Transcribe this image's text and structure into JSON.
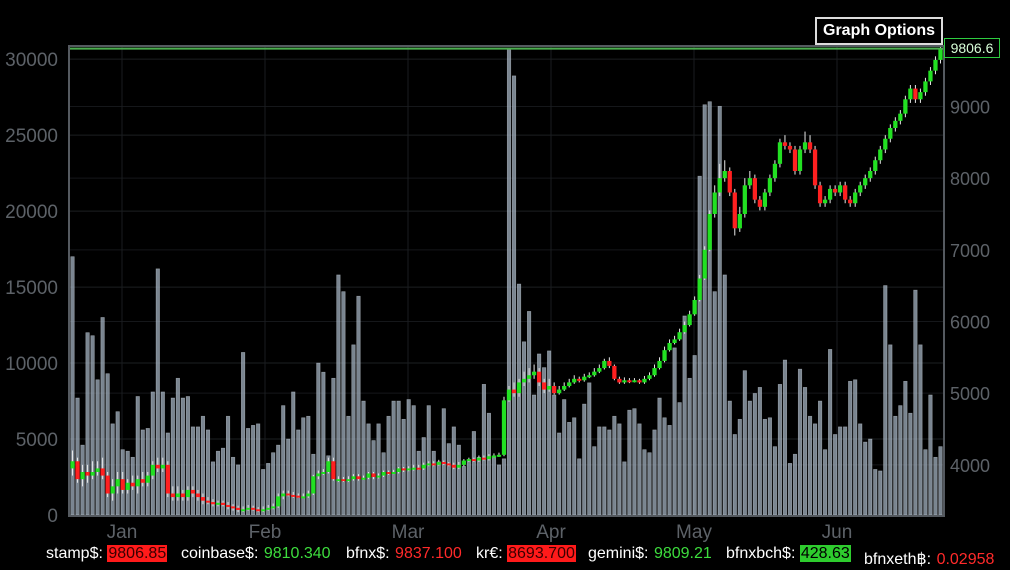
{
  "graph_options_label": "Graph Options",
  "last_price": "9806.6",
  "ticker": [
    {
      "label": "stamp$:",
      "value": "9806.85",
      "style": "down-bg"
    },
    {
      "label": "coinbase$:",
      "value": "9810.340",
      "style": "up"
    },
    {
      "label": "bfnx$:",
      "value": "9837.100",
      "style": "down"
    },
    {
      "label": "kr€:",
      "value": "8693.700",
      "style": "down-bg"
    },
    {
      "label": "gemini$:",
      "value": "9809.21",
      "style": "up"
    },
    {
      "label": "bfnxbch$:",
      "value": "428.63",
      "style": "up-bg"
    },
    {
      "label": "bfnxeth฿:",
      "value": "0.02958",
      "style": "down"
    }
  ],
  "colors": {
    "up": "#22e022",
    "down": "#ff2020",
    "volume": "#a9b8c8",
    "background": "#000000"
  },
  "chart_data": {
    "type": "candlestick",
    "title": "",
    "x_tick_labels": [
      "Jan",
      "Feb",
      "Mar",
      "Apr",
      "May",
      "Jun"
    ],
    "volume_axis": {
      "ticks": [
        0,
        5000,
        10000,
        15000,
        20000,
        25000,
        30000
      ],
      "range": [
        0,
        30800
      ]
    },
    "price_axis": {
      "ticks": [
        4000,
        5000,
        6000,
        7000,
        8000,
        9000
      ],
      "range": [
        3300,
        9830
      ]
    },
    "grid": true,
    "volume": [
      17000,
      7700,
      4600,
      12000,
      11800,
      8900,
      13000,
      9300,
      6000,
      6800,
      4300,
      4200,
      3800,
      7800,
      5600,
      5700,
      8100,
      16200,
      8100,
      5400,
      7700,
      9000,
      7700,
      7800,
      5800,
      5800,
      6500,
      5600,
      3500,
      4200,
      4400,
      6500,
      3800,
      3300,
      10700,
      5700,
      5900,
      6000,
      3000,
      3400,
      4100,
      4600,
      7200,
      5000,
      8100,
      5600,
      6400,
      6500,
      4000,
      10000,
      9400,
      3900,
      9000,
      15800,
      14700,
      6500,
      11200,
      14400,
      7500,
      6000,
      4900,
      6000,
      4100,
      6500,
      7500,
      7500,
      6300,
      7600,
      7200,
      4200,
      5100,
      7200,
      4200,
      3500,
      7000,
      4700,
      5800,
      4600,
      3200,
      3600,
      5500,
      3800,
      8600,
      6700,
      3800,
      3300,
      3700,
      30700,
      28900,
      15200,
      11400,
      13400,
      7900,
      10600,
      9700,
      10800,
      7900,
      5400,
      7600,
      6100,
      6400,
      3700,
      7300,
      8700,
      4500,
      5800,
      5800,
      5600,
      6500,
      6000,
      3500,
      6900,
      7000,
      6000,
      4300,
      4100,
      5600,
      7700,
      6400,
      5900,
      11000,
      7400,
      13100,
      9000,
      10500,
      22300,
      27000,
      27200,
      14700,
      26900,
      15800,
      7500,
      5300,
      6300,
      9500,
      7500,
      8000,
      8400,
      6300,
      6400,
      4500,
      8600,
      10200,
      3400,
      4000,
      9600,
      8400,
      6500,
      6000,
      7500,
      4300,
      10900,
      5300,
      5800,
      5800,
      8800,
      8900,
      6000,
      4800,
      5000,
      3000,
      2900,
      15100,
      11200,
      6500,
      7200,
      8800,
      6700,
      14800,
      11200,
      4300,
      7900,
      3800,
      4500
    ],
    "candles": [
      [
        3950,
        4050,
        3850,
        4200,
        3750
      ],
      [
        4050,
        3800,
        3750,
        4100,
        3700
      ],
      [
        3800,
        3900,
        3700,
        4000,
        3650
      ],
      [
        3900,
        3850,
        3750,
        4000,
        3700
      ],
      [
        3850,
        3900,
        3800,
        4050,
        3750
      ],
      [
        3900,
        3950,
        3850,
        4050,
        3800
      ],
      [
        3950,
        3850,
        3800,
        4100,
        3750
      ],
      [
        3850,
        3600,
        3550,
        3900,
        3500
      ],
      [
        3600,
        3700,
        3500,
        3800,
        3450
      ],
      [
        3700,
        3800,
        3600,
        3900,
        3550
      ],
      [
        3800,
        3650,
        3600,
        3900,
        3550
      ],
      [
        3650,
        3750,
        3600,
        3800,
        3550
      ],
      [
        3750,
        3700,
        3650,
        3850,
        3600
      ],
      [
        3700,
        3800,
        3600,
        3850,
        3550
      ],
      [
        3800,
        3750,
        3700,
        3900,
        3650
      ],
      [
        3750,
        3850,
        3700,
        3900,
        3650
      ],
      [
        3850,
        4000,
        3800,
        4050,
        3750
      ],
      [
        4000,
        3950,
        3900,
        4100,
        3850
      ],
      [
        3950,
        4000,
        3900,
        4100,
        3850
      ],
      [
        4000,
        3600,
        3550,
        4050,
        3500
      ],
      [
        3600,
        3550,
        3500,
        3700,
        3450
      ],
      [
        3550,
        3600,
        3500,
        3700,
        3450
      ],
      [
        3600,
        3550,
        3500,
        3650,
        3450
      ],
      [
        3550,
        3650,
        3500,
        3700,
        3450
      ],
      [
        3650,
        3600,
        3550,
        3700,
        3500
      ],
      [
        3600,
        3550,
        3500,
        3650,
        3450
      ],
      [
        3550,
        3500,
        3450,
        3600,
        3400
      ],
      [
        3500,
        3480,
        3450,
        3550,
        3420
      ],
      [
        3480,
        3450,
        3420,
        3520,
        3400
      ],
      [
        3450,
        3470,
        3420,
        3500,
        3400
      ],
      [
        3470,
        3440,
        3420,
        3500,
        3400
      ],
      [
        3440,
        3420,
        3380,
        3480,
        3350
      ],
      [
        3420,
        3400,
        3360,
        3450,
        3330
      ],
      [
        3400,
        3370,
        3340,
        3430,
        3320
      ],
      [
        3370,
        3380,
        3340,
        3420,
        3320
      ],
      [
        3380,
        3400,
        3360,
        3440,
        3340
      ],
      [
        3400,
        3380,
        3360,
        3430,
        3340
      ],
      [
        3380,
        3360,
        3340,
        3410,
        3320
      ],
      [
        3360,
        3380,
        3340,
        3420,
        3320
      ],
      [
        3380,
        3400,
        3360,
        3440,
        3340
      ],
      [
        3400,
        3420,
        3380,
        3460,
        3360
      ],
      [
        3420,
        3560,
        3400,
        3600,
        3380
      ],
      [
        3560,
        3600,
        3520,
        3640,
        3500
      ],
      [
        3600,
        3580,
        3560,
        3640,
        3540
      ],
      [
        3580,
        3570,
        3540,
        3620,
        3520
      ],
      [
        3570,
        3560,
        3540,
        3600,
        3520
      ],
      [
        3560,
        3560,
        3540,
        3600,
        3520
      ],
      [
        3560,
        3600,
        3540,
        3640,
        3520
      ],
      [
        3600,
        3840,
        3580,
        3860,
        3560
      ],
      [
        3840,
        3880,
        3800,
        3920,
        3780
      ],
      [
        3880,
        3900,
        3860,
        3940,
        3840
      ],
      [
        3900,
        4050,
        3880,
        4100,
        3860
      ],
      [
        4050,
        3800,
        3780,
        4100,
        3760
      ],
      [
        3800,
        3800,
        3760,
        3840,
        3740
      ],
      [
        3800,
        3780,
        3760,
        3830,
        3740
      ],
      [
        3780,
        3800,
        3760,
        3840,
        3740
      ],
      [
        3800,
        3840,
        3780,
        3870,
        3760
      ],
      [
        3840,
        3800,
        3780,
        3870,
        3760
      ],
      [
        3800,
        3820,
        3790,
        3850,
        3770
      ],
      [
        3820,
        3880,
        3800,
        3900,
        3780
      ],
      [
        3880,
        3830,
        3800,
        3900,
        3780
      ],
      [
        3830,
        3850,
        3810,
        3880,
        3790
      ],
      [
        3850,
        3900,
        3830,
        3920,
        3810
      ],
      [
        3900,
        3880,
        3860,
        3920,
        3840
      ],
      [
        3880,
        3900,
        3870,
        3930,
        3850
      ],
      [
        3900,
        3950,
        3880,
        3970,
        3860
      ],
      [
        3950,
        3930,
        3900,
        3970,
        3880
      ],
      [
        3930,
        3950,
        3910,
        3980,
        3890
      ],
      [
        3950,
        3960,
        3920,
        4000,
        3900
      ],
      [
        3960,
        3950,
        3930,
        4000,
        3910
      ],
      [
        3950,
        4000,
        3930,
        4030,
        3910
      ],
      [
        4000,
        4020,
        3980,
        4050,
        3960
      ],
      [
        4020,
        4000,
        3980,
        4050,
        3960
      ],
      [
        4000,
        4040,
        3990,
        4070,
        3970
      ],
      [
        4040,
        4020,
        4000,
        4060,
        3980
      ],
      [
        4020,
        4000,
        3980,
        4040,
        3960
      ],
      [
        4000,
        3960,
        3940,
        4030,
        3920
      ],
      [
        3960,
        4000,
        3940,
        4040,
        3920
      ],
      [
        4000,
        4060,
        3980,
        4080,
        3960
      ],
      [
        4060,
        4080,
        4040,
        4100,
        4020
      ],
      [
        4080,
        4060,
        4040,
        4100,
        4020
      ],
      [
        4060,
        4100,
        4040,
        4130,
        4020
      ],
      [
        4100,
        4080,
        4060,
        4130,
        4040
      ],
      [
        4080,
        4120,
        4060,
        4150,
        4040
      ],
      [
        4120,
        4130,
        4100,
        4160,
        4080
      ],
      [
        4130,
        4140,
        4110,
        4170,
        4090
      ],
      [
        4140,
        4900,
        4120,
        4950,
        4100
      ],
      [
        4900,
        5050,
        4880,
        5100,
        4850
      ],
      [
        5050,
        5000,
        4950,
        5150,
        4900
      ],
      [
        5000,
        5150,
        4950,
        5200,
        4900
      ],
      [
        5150,
        5200,
        5100,
        5300,
        5050
      ],
      [
        5200,
        5250,
        5150,
        5350,
        5100
      ],
      [
        5250,
        5300,
        5200,
        5400,
        5150
      ],
      [
        5300,
        5150,
        5100,
        5350,
        5050
      ],
      [
        5150,
        5050,
        5000,
        5200,
        4980
      ],
      [
        5050,
        5100,
        5020,
        5200,
        5000
      ],
      [
        5100,
        5000,
        4980,
        5150,
        4960
      ],
      [
        5000,
        5050,
        4980,
        5100,
        4960
      ],
      [
        5050,
        5100,
        5030,
        5150,
        5010
      ],
      [
        5100,
        5150,
        5080,
        5200,
        5060
      ],
      [
        5150,
        5200,
        5130,
        5250,
        5110
      ],
      [
        5200,
        5180,
        5150,
        5230,
        5130
      ],
      [
        5180,
        5230,
        5160,
        5270,
        5140
      ],
      [
        5230,
        5250,
        5210,
        5290,
        5190
      ],
      [
        5250,
        5300,
        5230,
        5350,
        5210
      ],
      [
        5300,
        5350,
        5280,
        5400,
        5260
      ],
      [
        5350,
        5450,
        5330,
        5480,
        5310
      ],
      [
        5450,
        5380,
        5350,
        5500,
        5330
      ],
      [
        5380,
        5200,
        5180,
        5400,
        5160
      ],
      [
        5200,
        5150,
        5130,
        5230,
        5110
      ],
      [
        5150,
        5180,
        5130,
        5220,
        5110
      ],
      [
        5180,
        5160,
        5140,
        5210,
        5120
      ],
      [
        5160,
        5180,
        5150,
        5210,
        5130
      ],
      [
        5180,
        5150,
        5130,
        5200,
        5110
      ],
      [
        5150,
        5200,
        5130,
        5240,
        5110
      ],
      [
        5200,
        5250,
        5180,
        5290,
        5160
      ],
      [
        5250,
        5350,
        5230,
        5400,
        5210
      ],
      [
        5350,
        5450,
        5330,
        5500,
        5310
      ],
      [
        5450,
        5600,
        5430,
        5650,
        5410
      ],
      [
        5600,
        5700,
        5580,
        5750,
        5560
      ],
      [
        5700,
        5750,
        5680,
        5800,
        5660
      ],
      [
        5750,
        5850,
        5730,
        5900,
        5710
      ],
      [
        5850,
        5950,
        5830,
        6000,
        5810
      ],
      [
        5950,
        6100,
        5930,
        6150,
        5910
      ],
      [
        6100,
        6300,
        6080,
        6350,
        6060
      ],
      [
        6300,
        6600,
        6280,
        6650,
        6260
      ],
      [
        6600,
        7000,
        6580,
        7050,
        6560
      ],
      [
        7000,
        7500,
        6980,
        7550,
        6950
      ],
      [
        7500,
        7800,
        7450,
        7900,
        7400
      ],
      [
        7800,
        8000,
        7750,
        8200,
        7700
      ],
      [
        8000,
        8100,
        7950,
        8250,
        7900
      ],
      [
        8100,
        7800,
        7750,
        8150,
        7700
      ],
      [
        7800,
        7300,
        7200,
        7850,
        7100
      ],
      [
        7300,
        7500,
        7250,
        7600,
        7200
      ],
      [
        7500,
        7900,
        7450,
        8000,
        7400
      ],
      [
        7900,
        8000,
        7850,
        8100,
        7800
      ],
      [
        8000,
        7700,
        7650,
        8050,
        7600
      ],
      [
        7700,
        7600,
        7550,
        7750,
        7500
      ],
      [
        7600,
        7800,
        7550,
        7850,
        7500
      ],
      [
        7800,
        8000,
        7750,
        8050,
        7700
      ],
      [
        8000,
        8200,
        7950,
        8250,
        7900
      ],
      [
        8200,
        8500,
        8150,
        8550,
        8100
      ],
      [
        8500,
        8450,
        8400,
        8600,
        8350
      ],
      [
        8450,
        8400,
        8350,
        8500,
        8300
      ],
      [
        8400,
        8100,
        8050,
        8450,
        8000
      ],
      [
        8100,
        8400,
        8050,
        8450,
        8000
      ],
      [
        8400,
        8500,
        8350,
        8650,
        8300
      ],
      [
        8500,
        8400,
        8350,
        8600,
        8300
      ],
      [
        8400,
        7900,
        7850,
        8450,
        7800
      ],
      [
        7900,
        7650,
        7600,
        7950,
        7550
      ],
      [
        7650,
        7700,
        7600,
        7750,
        7550
      ],
      [
        7700,
        7850,
        7650,
        7900,
        7600
      ],
      [
        7850,
        7800,
        7750,
        7900,
        7700
      ],
      [
        7800,
        7900,
        7750,
        7950,
        7700
      ],
      [
        7900,
        7700,
        7650,
        7950,
        7600
      ],
      [
        7700,
        7650,
        7600,
        7750,
        7550
      ],
      [
        7650,
        7800,
        7600,
        7850,
        7550
      ],
      [
        7800,
        7900,
        7750,
        7950,
        7700
      ],
      [
        7900,
        8000,
        7850,
        8050,
        7800
      ],
      [
        8000,
        8100,
        7950,
        8150,
        7900
      ],
      [
        8100,
        8250,
        8050,
        8300,
        8000
      ],
      [
        8250,
        8400,
        8200,
        8450,
        8150
      ],
      [
        8400,
        8550,
        8350,
        8600,
        8300
      ],
      [
        8550,
        8700,
        8500,
        8750,
        8450
      ],
      [
        8700,
        8800,
        8650,
        8850,
        8600
      ],
      [
        8800,
        8900,
        8750,
        8950,
        8700
      ],
      [
        8900,
        9100,
        8850,
        9150,
        8800
      ],
      [
        9100,
        9250,
        9050,
        9300,
        9000
      ],
      [
        9250,
        9100,
        9050,
        9300,
        9000
      ],
      [
        9100,
        9200,
        9050,
        9250,
        9000
      ],
      [
        9200,
        9350,
        9150,
        9400,
        9100
      ],
      [
        9350,
        9500,
        9300,
        9550,
        9250
      ],
      [
        9500,
        9650,
        9450,
        9700,
        9400
      ],
      [
        9650,
        9806.6,
        9600,
        9830,
        9550
      ]
    ],
    "last_price": 9806.6
  }
}
